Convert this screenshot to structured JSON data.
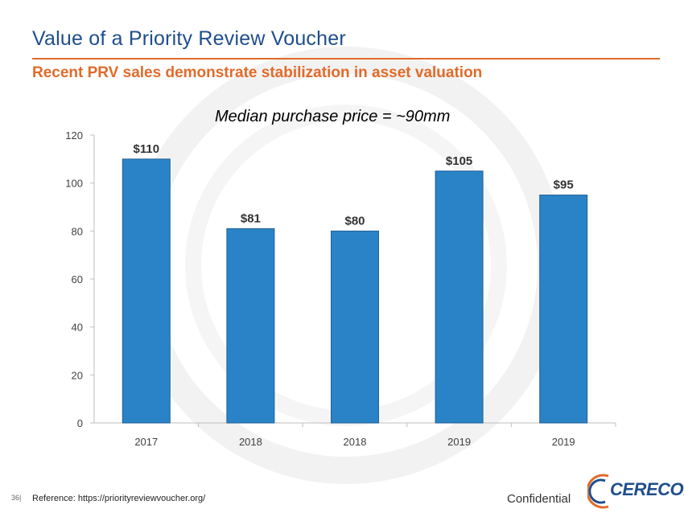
{
  "slide": {
    "title": "Value of a Priority Review Voucher",
    "subtitle": "Recent PRV sales demonstrate stabilization in asset valuation",
    "annotation": "Median purchase price = ~90mm",
    "page_number": "36|",
    "reference": "Reference: https://priorityreviewvoucher.org/",
    "confidential": "Confidential",
    "logo_text": "CERECOR"
  },
  "colors": {
    "bar": "#2a83c7",
    "title": "#1f4e8c",
    "accent": "#e06b2a"
  },
  "chart_data": {
    "type": "bar",
    "title": "",
    "xlabel": "",
    "ylabel": "",
    "categories": [
      "2017",
      "2018",
      "2018",
      "2019",
      "2019"
    ],
    "values": [
      110,
      81,
      80,
      105,
      95
    ],
    "data_labels": [
      "$110",
      "$81",
      "$80",
      "$105",
      "$95"
    ],
    "ylim": [
      0,
      120
    ],
    "yticks": [
      0,
      20,
      40,
      60,
      80,
      100,
      120
    ],
    "grid": false,
    "legend": "none"
  }
}
